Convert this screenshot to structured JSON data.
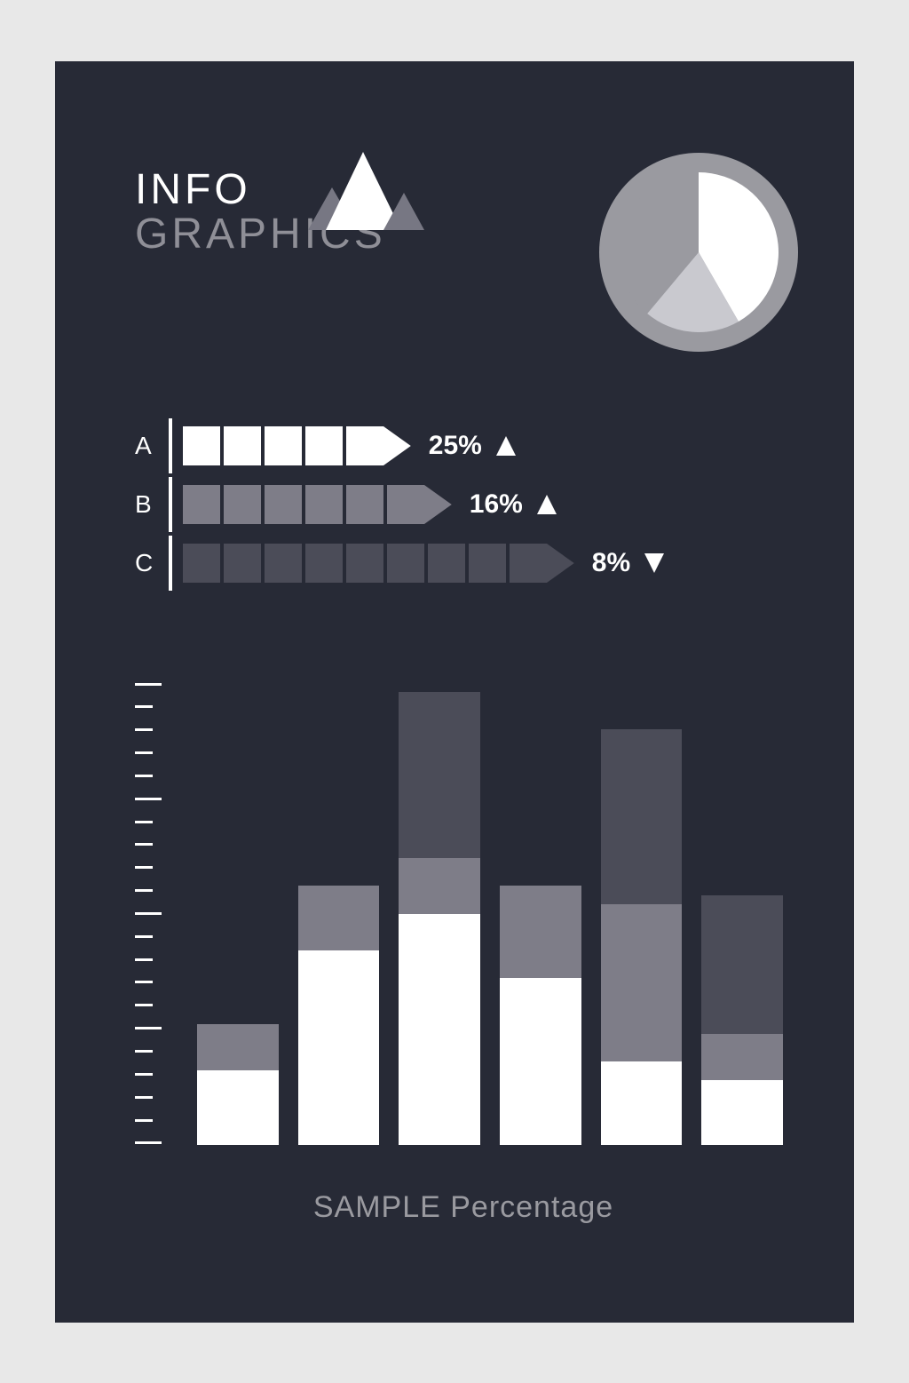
{
  "canvas": {
    "outer_bg": "#e8e8e8",
    "card_bg": "#272a36",
    "text_color": "#ffffff",
    "muted_text": "#8f8f97"
  },
  "title": {
    "line1": "INFO",
    "line2": "GRAPHICS",
    "line1_color": "#ffffff",
    "line2_color": "#8f8f97",
    "fontsize": 48
  },
  "mountain": {
    "big_color": "#ffffff",
    "small_color": "#777783"
  },
  "pie": {
    "type": "pie",
    "radius": 112,
    "ring_bg": "#9a9aa0",
    "slices": [
      {
        "start": -90,
        "end": 60,
        "color": "#ffffff"
      },
      {
        "start": 60,
        "end": 130,
        "color": "#c9c9cf"
      },
      {
        "start": 130,
        "end": 270,
        "color": "#9a9aa0"
      }
    ],
    "inner_ring_inset": 0,
    "border_width": 22
  },
  "arrows": {
    "type": "arrow-bars",
    "divider_color": "#ffffff",
    "label_color": "#ffffff",
    "segment_gap": 4,
    "segment_w": 42,
    "segment_h": 44,
    "rows": [
      {
        "label": "A",
        "segments": 5,
        "color": "#ffffff",
        "pct": "25%",
        "dir": "up",
        "tri_color": "#ffffff"
      },
      {
        "label": "B",
        "segments": 6,
        "color": "#7e7d88",
        "pct": "16%",
        "dir": "up",
        "tri_color": "#ffffff"
      },
      {
        "label": "C",
        "segments": 9,
        "color": "#4b4c58",
        "pct": "8%",
        "dir": "down",
        "tri_color": "#ffffff"
      }
    ]
  },
  "barchart": {
    "type": "stacked-bar",
    "x_label": "SAMPLE Percentage",
    "x_label_color": "#9a9aa0",
    "ylim": [
      0,
      100
    ],
    "tick_count": 20,
    "tick_color": "#ffffff",
    "tick_long_every": 5,
    "tick_short_w": 20,
    "tick_long_w": 30,
    "bar_gap": 22,
    "columns": [
      {
        "segments": [
          {
            "h": 16,
            "color": "#ffffff"
          },
          {
            "h": 10,
            "color": "#7e7d88"
          }
        ]
      },
      {
        "segments": [
          {
            "h": 42,
            "color": "#ffffff"
          },
          {
            "h": 14,
            "color": "#7e7d88"
          }
        ]
      },
      {
        "segments": [
          {
            "h": 50,
            "color": "#ffffff"
          },
          {
            "h": 12,
            "color": "#7e7d88"
          },
          {
            "h": 36,
            "color": "#4b4c58"
          }
        ]
      },
      {
        "segments": [
          {
            "h": 36,
            "color": "#ffffff"
          },
          {
            "h": 20,
            "color": "#7e7d88"
          }
        ]
      },
      {
        "segments": [
          {
            "h": 18,
            "color": "#ffffff"
          },
          {
            "h": 34,
            "color": "#7e7d88"
          },
          {
            "h": 38,
            "color": "#4b4c58"
          }
        ]
      },
      {
        "segments": [
          {
            "h": 14,
            "color": "#ffffff"
          },
          {
            "h": 10,
            "color": "#7e7d88"
          },
          {
            "h": 30,
            "color": "#4b4c58"
          }
        ]
      }
    ]
  }
}
